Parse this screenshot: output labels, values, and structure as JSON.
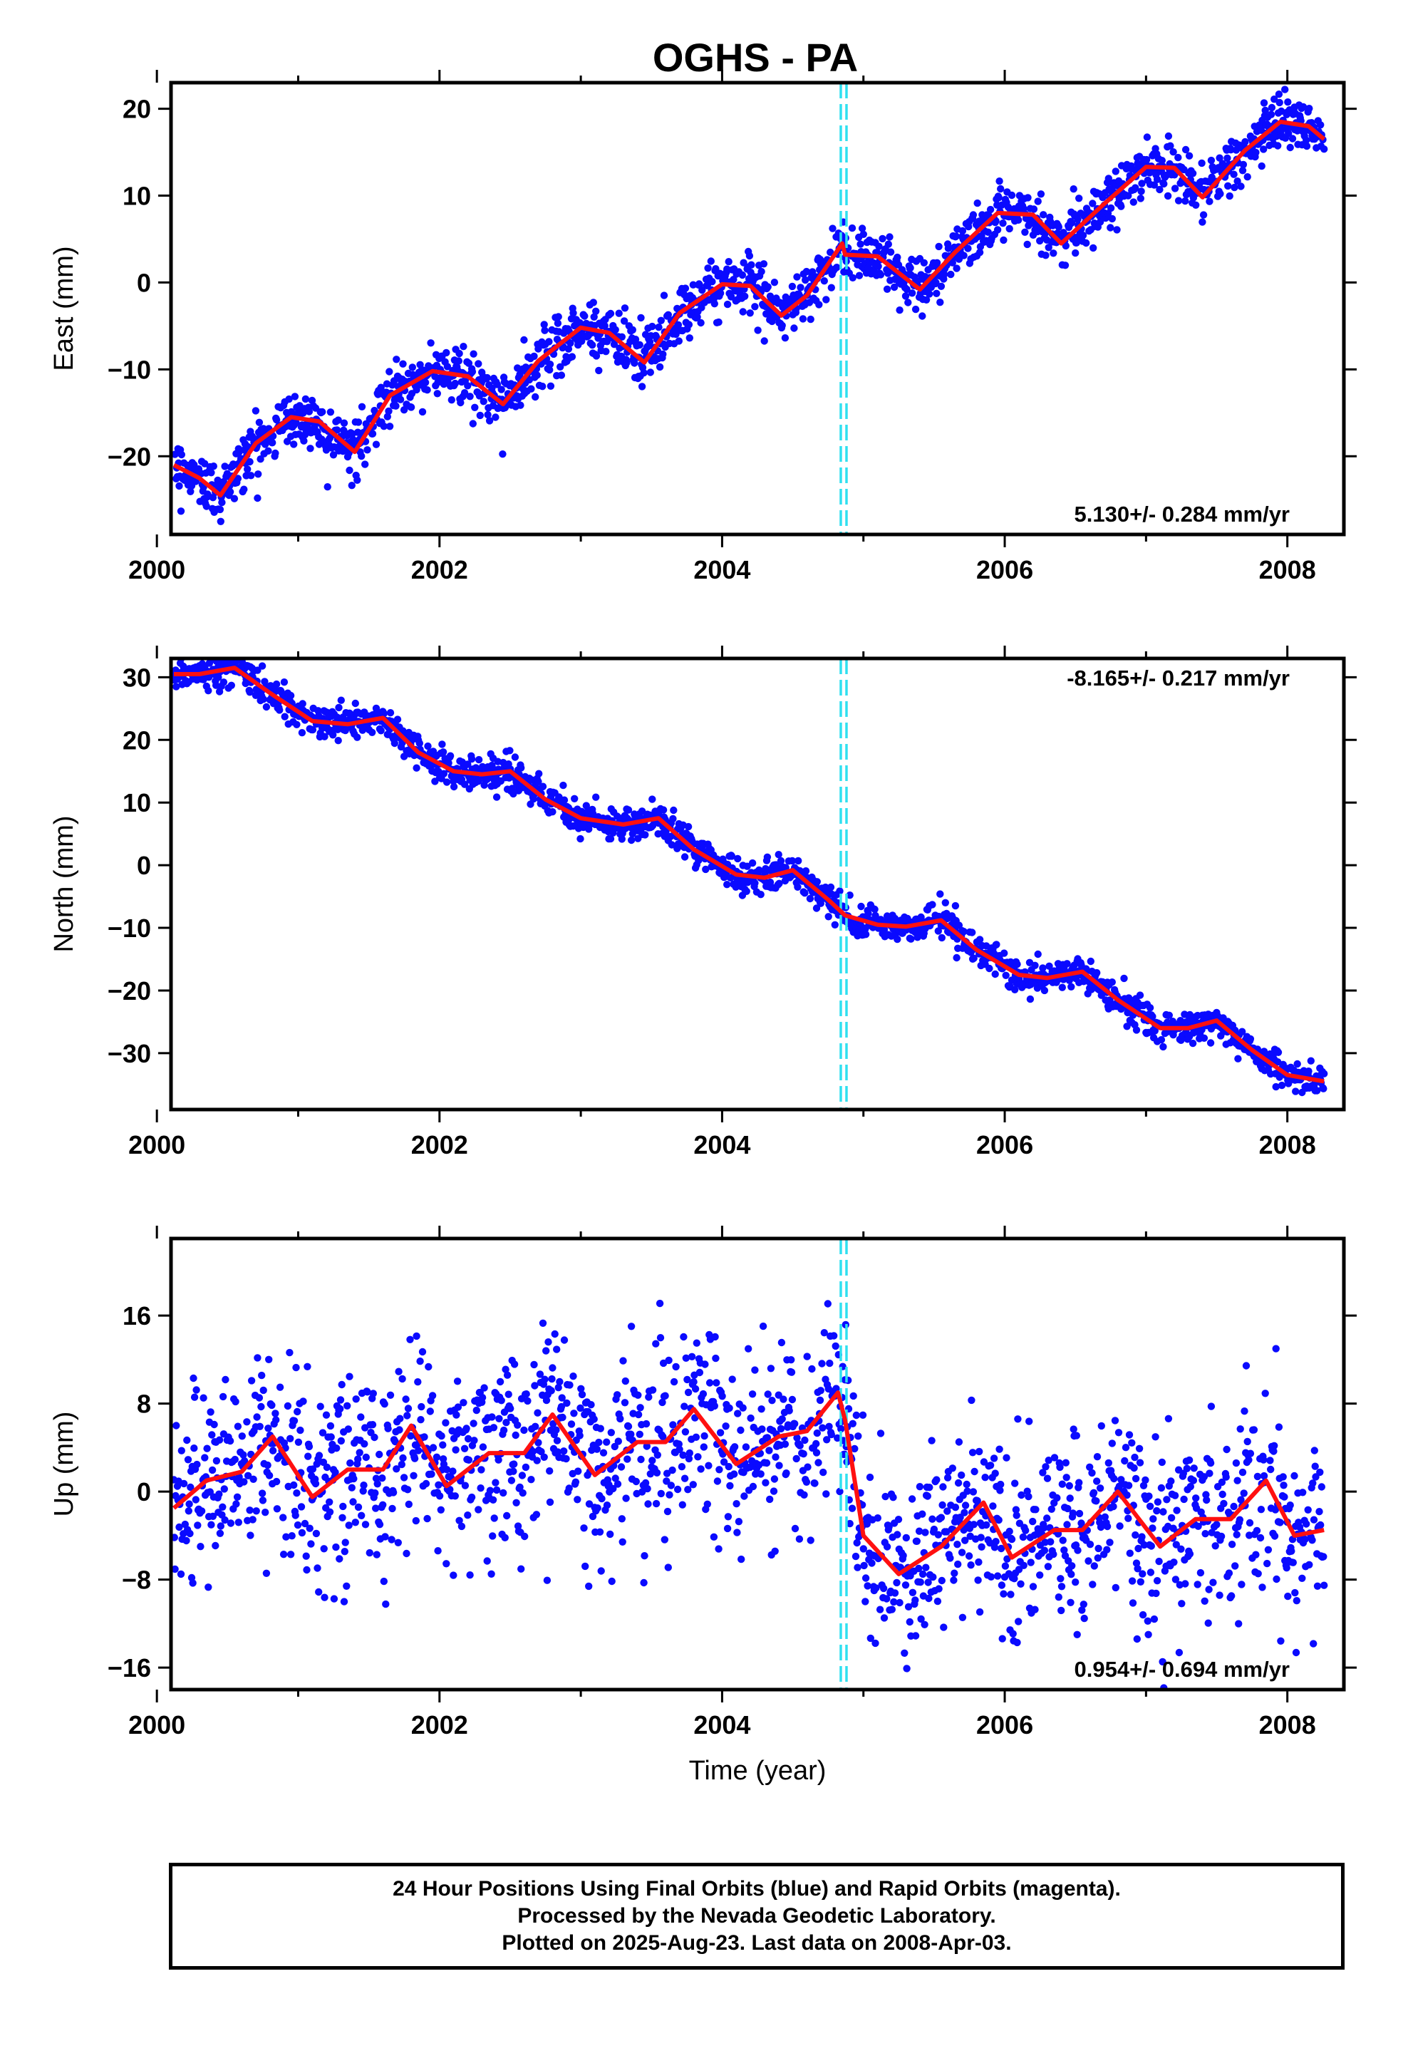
{
  "title": "OGHS - PA",
  "caption": {
    "line1": "24 Hour Positions Using Final Orbits (blue) and Rapid Orbits (magenta).",
    "line2": "Processed by the Nevada Geodetic Laboratory.",
    "line3": "Plotted on 2025-Aug-23. Last data on 2008-Apr-03."
  },
  "colors": {
    "final_orbits": "#0a0aff",
    "fit_line": "#ff1010",
    "offset_marker": "#30e0f0"
  },
  "chart_data": [
    {
      "type": "scatter",
      "ylabel": "East (mm)",
      "xlabel": "",
      "xlim": [
        2000.1,
        2008.4
      ],
      "ylim": [
        -29,
        23
      ],
      "xticks": [
        2000,
        2002,
        2004,
        2006,
        2008
      ],
      "yticks": [
        -20,
        -10,
        0,
        10,
        20
      ],
      "rate_label": "5.130+/- 0.284 mm/yr",
      "rate_position": "bottom-right",
      "offset_epoch": 2004.86,
      "grid": false,
      "noise": 1.6,
      "fit": {
        "name": "",
        "x": [
          2000.12,
          2000.3,
          2000.45,
          2000.7,
          2000.95,
          2001.15,
          2001.4,
          2001.65,
          2001.95,
          2002.2,
          2002.45,
          2002.7,
          2003.0,
          2003.2,
          2003.45,
          2003.7,
          2004.0,
          2004.2,
          2004.42,
          2004.6,
          2004.85,
          2004.87,
          2005.1,
          2005.4,
          2005.65,
          2005.95,
          2006.2,
          2006.4,
          2006.7,
          2007.0,
          2007.2,
          2007.4,
          2007.7,
          2007.95,
          2008.15,
          2008.26
        ],
        "y": [
          -21,
          -22.5,
          -24.5,
          -18.5,
          -15.5,
          -16,
          -19.5,
          -13,
          -10.2,
          -10.8,
          -14,
          -9,
          -5.2,
          -5.8,
          -9.2,
          -3.5,
          -0.2,
          -0.4,
          -3.8,
          -1.5,
          4.5,
          3.2,
          3.0,
          -0.8,
          3.5,
          8,
          7.8,
          4.5,
          9,
          13.3,
          13.2,
          9.8,
          15.2,
          18.5,
          18.0,
          16.5
        ]
      }
    },
    {
      "type": "scatter",
      "ylabel": "North (mm)",
      "xlabel": "",
      "xlim": [
        2000.1,
        2008.4
      ],
      "ylim": [
        -39,
        33
      ],
      "xticks": [
        2000,
        2002,
        2004,
        2006,
        2008
      ],
      "yticks": [
        -30,
        -20,
        -10,
        0,
        10,
        20,
        30
      ],
      "rate_label": "-8.165+/- 0.217 mm/yr",
      "rate_position": "top-right",
      "offset_epoch": 2004.86,
      "grid": false,
      "noise": 1.3,
      "fit": {
        "name": "",
        "x": [
          2000.12,
          2000.3,
          2000.55,
          2000.8,
          2001.1,
          2001.35,
          2001.6,
          2001.85,
          2002.1,
          2002.3,
          2002.5,
          2002.75,
          2003.0,
          2003.3,
          2003.55,
          2003.8,
          2004.1,
          2004.3,
          2004.5,
          2004.75,
          2004.87,
          2005.1,
          2005.3,
          2005.55,
          2005.8,
          2006.1,
          2006.3,
          2006.55,
          2006.8,
          2007.1,
          2007.3,
          2007.5,
          2007.75,
          2008.0,
          2008.26
        ],
        "y": [
          30.5,
          30.5,
          31.5,
          27.5,
          23,
          22.5,
          23.5,
          18,
          15,
          14.5,
          15,
          10.5,
          7.5,
          6.5,
          7.5,
          2.5,
          -1.5,
          -2,
          -0.8,
          -5.5,
          -8,
          -9.5,
          -9.8,
          -8.8,
          -13.5,
          -17.5,
          -18,
          -17,
          -21.5,
          -26,
          -26,
          -24.8,
          -29.5,
          -33.5,
          -34.5
        ]
      }
    },
    {
      "type": "scatter",
      "ylabel": "Up (mm)",
      "xlabel": "Time (year)",
      "xlim": [
        2000.1,
        2008.4
      ],
      "ylim": [
        -18,
        23
      ],
      "xticks": [
        2000,
        2002,
        2004,
        2006,
        2008
      ],
      "yticks": [
        -16,
        -8,
        0,
        8,
        16
      ],
      "rate_label": "0.954+/- 0.694 mm/yr",
      "rate_position": "bottom-right",
      "offset_epoch": 2004.86,
      "grid": false,
      "noise": 4.2,
      "fit": {
        "name": "",
        "x": [
          2000.12,
          2000.35,
          2000.6,
          2000.82,
          2001.1,
          2001.35,
          2001.6,
          2001.8,
          2002.05,
          2002.35,
          2002.6,
          2002.8,
          2003.1,
          2003.4,
          2003.6,
          2003.8,
          2004.1,
          2004.4,
          2004.6,
          2004.82,
          2004.87,
          2005.0,
          2005.25,
          2005.55,
          2005.85,
          2006.05,
          2006.35,
          2006.55,
          2006.8,
          2007.1,
          2007.35,
          2007.6,
          2007.85,
          2008.05,
          2008.26
        ],
        "y": [
          -1.5,
          1,
          1.8,
          5,
          -0.5,
          2,
          2,
          6,
          0.5,
          3.5,
          3.5,
          7,
          1.5,
          4.5,
          4.5,
          7.5,
          2.5,
          5,
          5.5,
          9,
          6.5,
          -4,
          -7.5,
          -5,
          -1,
          -6,
          -3.5,
          -3.5,
          0,
          -5,
          -2.5,
          -2.5,
          1,
          -4,
          -3.5
        ]
      }
    }
  ]
}
